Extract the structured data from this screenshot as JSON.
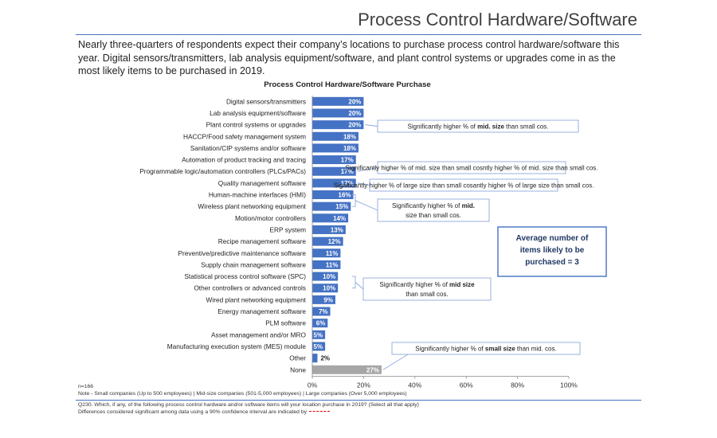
{
  "page": {
    "title": "Process Control Hardware/Software",
    "intro": "Nearly three-quarters of respondents expect their company’s locations to purchase process control hardware/software this year. Digital sensors/transmitters, lab analysis equipment/software, and plant control systems or upgrades come in as the most likely items to be purchased in 2019.",
    "footnote_question": "Q230. Which, if any, of the following process control hardware and/or software items will your location purchase in 2019? (Select all that apply)",
    "footnote_sig": "Differences considered significant among data using a 90% confidence interval are indicated by"
  },
  "colors": {
    "bar": "#4472c4",
    "bar_none": "#a6a6a6",
    "accent": "#4472c4",
    "callout_border": "#8ea9db",
    "box_border": "#4472c4"
  },
  "chart_data": {
    "type": "bar",
    "orientation": "horizontal",
    "title": "Process Control Hardware/Software Purchase",
    "categories": [
      "Digital sensors/transmitters",
      "Lab analysis equipment/software",
      "Plant control systems or upgrades",
      "HACCP/Food safety management system",
      "Sanitation/CIP systems and/or software",
      "Automation of product tracking and tracing",
      "Programmable logic/automation controllers (PLCs/PACs)",
      "Quality management software",
      "Human-machine interfaces (HMI)",
      "Wireless plant networking equipment",
      "Motion/motor controllers",
      "ERP system",
      "Recipe management software",
      "Preventive/predictive maintenance software",
      "Supply chain management software",
      "Statistical process control software (SPC)",
      "Other controllers or advanced controls",
      "Wired plant networking equipment",
      "Energy management software",
      "PLM software",
      "Asset management and/or MRO",
      "Manufacturing execution system (MES) module",
      "Other",
      "None"
    ],
    "values": [
      20,
      20,
      20,
      18,
      18,
      17,
      17,
      17,
      16,
      15,
      14,
      13,
      12,
      11,
      11,
      10,
      10,
      9,
      7,
      6,
      5,
      5,
      2,
      27
    ],
    "value_labels": [
      "20%",
      "20%",
      "20%",
      "18%",
      "18%",
      "17%",
      "17%",
      "17%",
      "16%",
      "15%",
      "14%",
      "13%",
      "12%",
      "11%",
      "11%",
      "10%",
      "10%",
      "9%",
      "7%",
      "6%",
      "5%",
      "5%",
      "2%",
      "27%"
    ],
    "xlim": [
      0,
      100
    ],
    "xticks": [
      "0%",
      "20%",
      "40%",
      "60%",
      "80%",
      "100%"
    ],
    "xtick_values": [
      0,
      20,
      40,
      60,
      80,
      100
    ],
    "sample_note": "n=166",
    "legend_note": "Note - Small companies (Up to 500 employees) | Mid-size companies (501-5,000 employees) | Large companies (Over 5,000 employees)",
    "callouts": [
      {
        "text": "Significantly higher % of mid. size than small cos.",
        "targets": [
          2
        ]
      },
      {
        "text": "Significantly higher % of mid. size than small cos.",
        "targets": [
          6
        ]
      },
      {
        "text": "Significantly higher % of large size than small cos.",
        "targets": [
          7
        ]
      },
      {
        "text": "Significantly higher % of mid. size than small cos.",
        "targets": [
          8,
          9
        ]
      },
      {
        "text": "Significantly higher % of mid size than small cos.",
        "targets": [
          15,
          16
        ]
      },
      {
        "text": "Significantly higher % of small size than mid. cos.",
        "targets": [
          23
        ]
      }
    ],
    "summary_box": "Average number of items likely to be purchased = 3"
  }
}
